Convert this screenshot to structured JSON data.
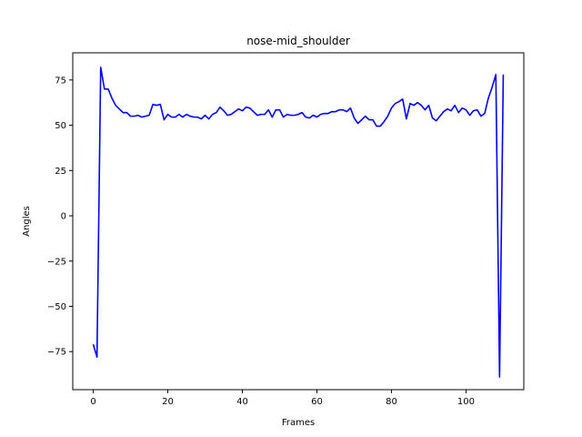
{
  "chart_data": {
    "type": "line",
    "title": "nose-mid_shoulder",
    "xlabel": "Frames",
    "ylabel": "Angles",
    "xlim": [
      -5.5,
      115.5
    ],
    "ylim": [
      -96,
      90
    ],
    "xticks": [
      0,
      20,
      40,
      60,
      80,
      100
    ],
    "yticks": [
      -75,
      -50,
      -25,
      0,
      25,
      50,
      75
    ],
    "grid": false,
    "legend": "none",
    "series": [
      {
        "color": "#0000ff",
        "x": [
          0,
          1,
          2,
          3,
          4,
          5,
          6,
          7,
          8,
          9,
          10,
          11,
          12,
          13,
          14,
          15,
          16,
          17,
          18,
          19,
          20,
          21,
          22,
          23,
          24,
          25,
          26,
          27,
          28,
          29,
          30,
          31,
          32,
          33,
          34,
          35,
          36,
          37,
          38,
          39,
          40,
          41,
          42,
          43,
          44,
          45,
          46,
          47,
          48,
          49,
          50,
          51,
          52,
          53,
          54,
          55,
          56,
          57,
          58,
          59,
          60,
          61,
          62,
          63,
          64,
          65,
          66,
          67,
          68,
          69,
          70,
          71,
          72,
          73,
          74,
          75,
          76,
          77,
          78,
          79,
          80,
          81,
          82,
          83,
          84,
          85,
          86,
          87,
          88,
          89,
          90,
          91,
          92,
          93,
          94,
          95,
          96,
          97,
          98,
          99,
          100,
          101,
          102,
          103,
          104,
          105,
          106,
          107,
          108,
          109,
          110
        ],
        "y": [
          -71,
          -78,
          82,
          70,
          70,
          65,
          61,
          59,
          57,
          57,
          55,
          55,
          55.5,
          54.5,
          55,
          55.5,
          61.5,
          61,
          61.5,
          53,
          56,
          54.5,
          54.5,
          56,
          54.5,
          56,
          55,
          54.5,
          54.5,
          53.5,
          55.5,
          53.5,
          56,
          57,
          60,
          58,
          55.5,
          56,
          57.5,
          59,
          58,
          60,
          59.5,
          57.5,
          55.5,
          56,
          56,
          58.5,
          54.5,
          58.5,
          58.5,
          54.5,
          56,
          55.5,
          55.5,
          56,
          57,
          54.5,
          54,
          55.5,
          54.5,
          56,
          56.5,
          56.5,
          57.5,
          57.5,
          58.5,
          58.5,
          57.5,
          59.5,
          54,
          51,
          53,
          55,
          53,
          53,
          49.5,
          49.5,
          52,
          55,
          59.5,
          62,
          63,
          64.5,
          53.5,
          62,
          61,
          62.5,
          61,
          58.5,
          61,
          54,
          52.5,
          55,
          57.5,
          59,
          58,
          61,
          57,
          59.5,
          58.5,
          55.5,
          58,
          58.5,
          55,
          56.5,
          65,
          71,
          78,
          -89,
          78
        ]
      }
    ]
  }
}
